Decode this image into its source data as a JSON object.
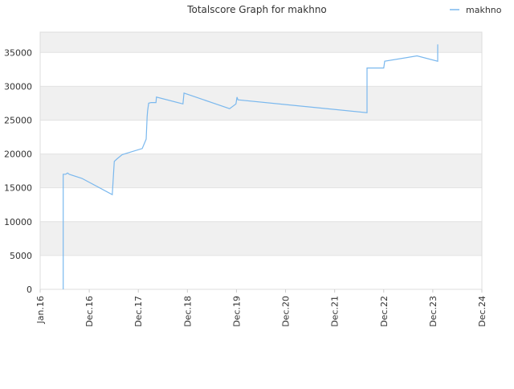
{
  "chart_data": {
    "type": "line",
    "title": "Totalscore Graph for makhno",
    "legend_position": "top-right",
    "grid": true,
    "xlim": [
      0,
      9
    ],
    "xticks": [
      {
        "value": 0,
        "label": "Jan.16"
      },
      {
        "value": 1,
        "label": "Dec.16"
      },
      {
        "value": 2,
        "label": "Dec.17"
      },
      {
        "value": 3,
        "label": "Dec.18"
      },
      {
        "value": 4,
        "label": "Dec.19"
      },
      {
        "value": 5,
        "label": "Dec.20"
      },
      {
        "value": 6,
        "label": "Dec.21"
      },
      {
        "value": 7,
        "label": "Dec.22"
      },
      {
        "value": 8,
        "label": "Dec.23"
      },
      {
        "value": 9,
        "label": "Dec.24"
      }
    ],
    "ylim": [
      0,
      38000
    ],
    "yticks": [
      0,
      5000,
      10000,
      15000,
      20000,
      25000,
      30000,
      35000
    ],
    "series": [
      {
        "name": "makhno",
        "color": "#7ab8ee",
        "x": [
          0.47,
          0.47,
          0.52,
          0.56,
          0.59,
          0.85,
          1.47,
          1.51,
          1.57,
          1.67,
          2.08,
          2.16,
          2.18,
          2.19,
          2.21,
          2.26,
          2.36,
          2.37,
          2.91,
          2.93,
          3.86,
          3.99,
          4.01,
          4.03,
          6.66,
          6.66,
          7.0,
          7.02,
          7.68,
          8.1,
          8.1
        ],
        "values": [
          0,
          17000,
          17000,
          17200,
          17000,
          16400,
          14000,
          18900,
          19300,
          19900,
          20800,
          22200,
          25500,
          26400,
          27500,
          27600,
          27600,
          28400,
          27400,
          29000,
          26700,
          27400,
          28400,
          28000,
          26100,
          32700,
          32700,
          33700,
          34500,
          33700,
          36200
        ]
      }
    ]
  }
}
